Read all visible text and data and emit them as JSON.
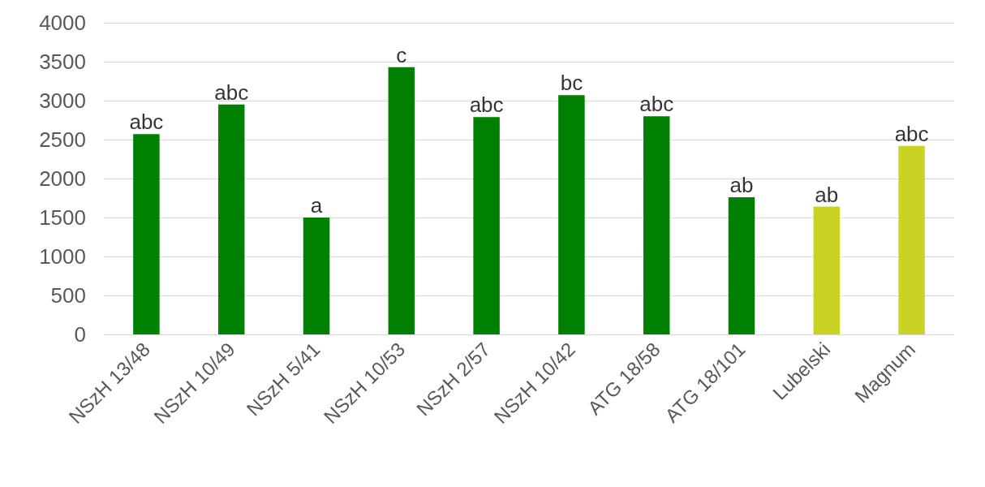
{
  "chart_data": {
    "type": "bar",
    "categories": [
      "NSzH 13/48",
      "NSzH 10/49",
      "NSzH 5/41",
      "NSzH 10/53",
      "NSzH 2/57",
      "NSzH 10/42",
      "ATG 18/58",
      "ATG 18/101",
      "Lubelski",
      "Magnum"
    ],
    "values": [
      2570,
      2950,
      1500,
      3430,
      2790,
      3070,
      2800,
      1760,
      1640,
      2420
    ],
    "colors": [
      "#008000",
      "#008000",
      "#008000",
      "#008000",
      "#008000",
      "#008000",
      "#008000",
      "#008000",
      "#c9d325",
      "#c9d325"
    ],
    "ylim": [
      0,
      4000
    ],
    "yticks": [
      0,
      500,
      1000,
      1500,
      2000,
      2500,
      3000,
      3500,
      4000
    ],
    "grid": "y",
    "annotations": [
      {
        "text": "abc",
        "x": "NSzH 13/48",
        "y": 2570
      },
      {
        "text": "abc",
        "x": "NSzH 10/49",
        "y": 2950
      },
      {
        "text": "a",
        "x": "NSzH 5/41",
        "y": 1500
      },
      {
        "text": "c",
        "x": "NSzH 10/53",
        "y": 3430
      },
      {
        "text": "abc",
        "x": "NSzH 2/57",
        "y": 2790
      },
      {
        "text": "bc",
        "x": "NSzH 10/42",
        "y": 3070
      },
      {
        "text": "abc",
        "x": "ATG 18/58",
        "y": 2800
      },
      {
        "text": "ab",
        "x": "ATG 18/101",
        "y": 1760
      },
      {
        "text": "ab",
        "x": "Lubelski",
        "y": 1640
      },
      {
        "text": "abc",
        "x": "Magnum",
        "y": 2420
      }
    ]
  }
}
